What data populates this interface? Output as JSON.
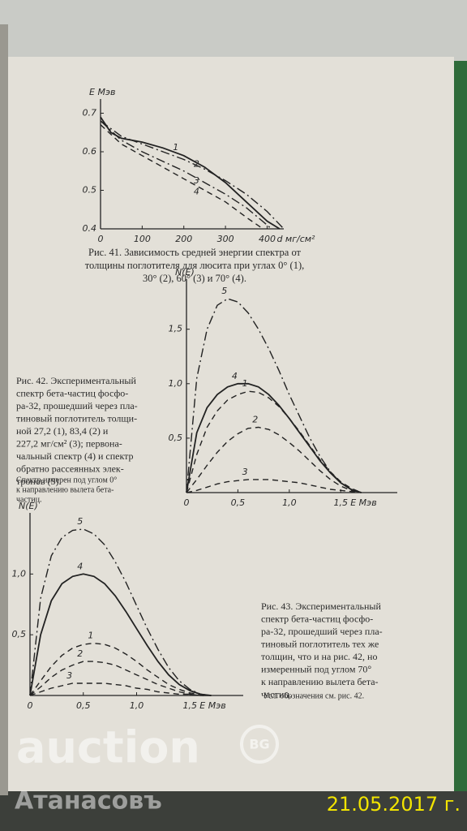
{
  "chart_data": [
    {
      "type": "line",
      "ylabel": "E Мэв",
      "xlabel": "d мг/см²",
      "xlim": [
        0,
        440
      ],
      "ylim": [
        0.4,
        0.72
      ],
      "xticks": [
        0,
        100,
        200,
        300,
        400
      ],
      "yticks": [
        0.4,
        0.5,
        0.6,
        0.7
      ],
      "series": [
        {
          "name": "1",
          "style": "solid",
          "x": [
            0,
            25,
            50,
            100,
            150,
            200,
            250,
            300,
            350,
            400,
            430
          ],
          "values": [
            0.69,
            0.65,
            0.635,
            0.625,
            0.61,
            0.59,
            0.56,
            0.52,
            0.47,
            0.42,
            0.4
          ]
        },
        {
          "name": "2",
          "style": "dashdot",
          "x": [
            0,
            50,
            100,
            150,
            200,
            250,
            300,
            350,
            400,
            440
          ],
          "values": [
            0.68,
            0.64,
            0.62,
            0.6,
            0.58,
            0.555,
            0.525,
            0.49,
            0.445,
            0.4
          ]
        },
        {
          "name": "3",
          "style": "dashdot",
          "x": [
            0,
            50,
            100,
            150,
            200,
            250,
            300,
            350,
            400,
            410
          ],
          "values": [
            0.68,
            0.63,
            0.6,
            0.575,
            0.55,
            0.52,
            0.49,
            0.455,
            0.41,
            0.4
          ]
        },
        {
          "name": "4",
          "style": "dashed",
          "x": [
            0,
            50,
            100,
            150,
            200,
            250,
            300,
            350,
            390
          ],
          "values": [
            0.67,
            0.62,
            0.59,
            0.56,
            0.53,
            0.5,
            0.47,
            0.43,
            0.4
          ]
        }
      ],
      "caption": [
        "Рис. 41. Зависимость средней энергии спектра от",
        "толщины поглотителя для люсита при углах 0° (1),",
        "30° (2), 60° (3) и 70° (4)."
      ]
    },
    {
      "type": "line",
      "ylabel": "N(E)",
      "xlabel": "E Мэв",
      "xlim": [
        0,
        2.05
      ],
      "ylim": [
        0,
        1.9
      ],
      "xticks": [
        0,
        {
          "value": 0.5,
          "label": "0,5"
        },
        {
          "value": 1,
          "label": "1,0"
        },
        {
          "value": 1.5,
          "label": "1,5"
        }
      ],
      "yticks": [
        {
          "value": 0.5,
          "label": "0,5"
        },
        {
          "value": 1,
          "label": "1,0"
        },
        {
          "value": 1.5,
          "label": "1,5"
        }
      ],
      "x": [
        0,
        0.1,
        0.2,
        0.3,
        0.4,
        0.5,
        0.6,
        0.7,
        0.8,
        0.9,
        1.0,
        1.1,
        1.2,
        1.3,
        1.4,
        1.5,
        1.6,
        1.7
      ],
      "series": [
        {
          "name": "5",
          "style": "dashdot",
          "values": [
            0,
            1.05,
            1.5,
            1.72,
            1.78,
            1.75,
            1.65,
            1.5,
            1.32,
            1.12,
            0.9,
            0.7,
            0.5,
            0.33,
            0.19,
            0.09,
            0.03,
            0
          ]
        },
        {
          "name": "4",
          "style": "solid",
          "values": [
            0,
            0.55,
            0.78,
            0.9,
            0.97,
            1.0,
            1.0,
            0.97,
            0.9,
            0.8,
            0.68,
            0.55,
            0.42,
            0.29,
            0.18,
            0.09,
            0.03,
            0
          ]
        },
        {
          "name": "1",
          "style": "dashed",
          "values": [
            0,
            0.35,
            0.6,
            0.75,
            0.85,
            0.9,
            0.93,
            0.92,
            0.87,
            0.79,
            0.68,
            0.56,
            0.43,
            0.3,
            0.19,
            0.1,
            0.04,
            0
          ]
        },
        {
          "name": "2",
          "style": "dashed",
          "values": [
            0,
            0.12,
            0.25,
            0.37,
            0.47,
            0.54,
            0.59,
            0.6,
            0.58,
            0.53,
            0.46,
            0.38,
            0.29,
            0.2,
            0.12,
            0.06,
            0.02,
            0
          ]
        },
        {
          "name": "3",
          "style": "dashed",
          "values": [
            0,
            0.02,
            0.05,
            0.08,
            0.1,
            0.11,
            0.12,
            0.12,
            0.12,
            0.11,
            0.1,
            0.09,
            0.07,
            0.05,
            0.03,
            0.02,
            0.01,
            0
          ]
        }
      ],
      "caption": [
        "Рис. 42. Экспериментальный",
        "спектр бета-частиц фосфо-",
        "ра-32, прошедший через пла-",
        "тиновый поглотитель толщи-",
        "ной 27,2 (1), 83,4 (2) и",
        "227,2 мг/см² (3); первона-",
        "чальный спектр (4) и спектр",
        "обратно рассеянных элек-",
        "тронов (5)."
      ],
      "note": [
        "Спектр измерен под углом 0°",
        "к направлению вылета бета-",
        "частиц."
      ]
    },
    {
      "type": "line",
      "ylabel": "N(E)",
      "xlabel": "E Мэв",
      "xlim": [
        0,
        2
      ],
      "ylim": [
        0,
        1.45
      ],
      "xticks": [
        0,
        {
          "value": 0.5,
          "label": "0,5"
        },
        {
          "value": 1,
          "label": "1,0"
        },
        {
          "value": 1.5,
          "label": "1,5"
        }
      ],
      "yticks": [
        {
          "value": 0.5,
          "label": "0,5"
        },
        {
          "value": 1,
          "label": "1,0"
        }
      ],
      "x": [
        0,
        0.1,
        0.2,
        0.3,
        0.4,
        0.5,
        0.6,
        0.7,
        0.8,
        0.9,
        1.0,
        1.1,
        1.2,
        1.3,
        1.4,
        1.5,
        1.6,
        1.7
      ],
      "series": [
        {
          "name": "5",
          "style": "dashdot",
          "values": [
            0,
            0.8,
            1.15,
            1.3,
            1.36,
            1.37,
            1.33,
            1.24,
            1.1,
            0.93,
            0.74,
            0.55,
            0.38,
            0.23,
            0.12,
            0.05,
            0.01,
            0
          ]
        },
        {
          "name": "4",
          "style": "solid",
          "values": [
            0,
            0.5,
            0.78,
            0.92,
            0.98,
            1.0,
            0.98,
            0.92,
            0.82,
            0.69,
            0.55,
            0.41,
            0.28,
            0.17,
            0.09,
            0.04,
            0.01,
            0
          ]
        },
        {
          "name": "1",
          "style": "dashed",
          "values": [
            0,
            0.12,
            0.24,
            0.33,
            0.39,
            0.42,
            0.43,
            0.42,
            0.39,
            0.34,
            0.28,
            0.21,
            0.15,
            0.09,
            0.05,
            0.02,
            0.01,
            0
          ]
        },
        {
          "name": "2",
          "style": "dashed",
          "values": [
            0,
            0.07,
            0.15,
            0.21,
            0.25,
            0.28,
            0.28,
            0.27,
            0.25,
            0.21,
            0.17,
            0.13,
            0.09,
            0.06,
            0.03,
            0.01,
            0,
            0
          ]
        },
        {
          "name": "3",
          "style": "dashed",
          "values": [
            0,
            0.03,
            0.06,
            0.08,
            0.1,
            0.1,
            0.1,
            0.1,
            0.09,
            0.08,
            0.06,
            0.05,
            0.03,
            0.02,
            0.01,
            0.01,
            0,
            0
          ]
        }
      ],
      "caption": [
        "Рис. 43. Экспериментальный",
        "спектр бета-частиц фосфо-",
        "ра-32, прошедший через пла-",
        "тиновый поглотитель тех же",
        "толщин, что и на рис. 42, но",
        "измеренный под углом 70°",
        "к направлению вылета бета-",
        "частиц."
      ],
      "note": [
        "Усл. обозначения см. рис. 42."
      ]
    }
  ],
  "watermark": {
    "logo": "auction",
    "badge": "BG",
    "name": "Атанасовъ"
  },
  "date": "21.05.2017 г."
}
